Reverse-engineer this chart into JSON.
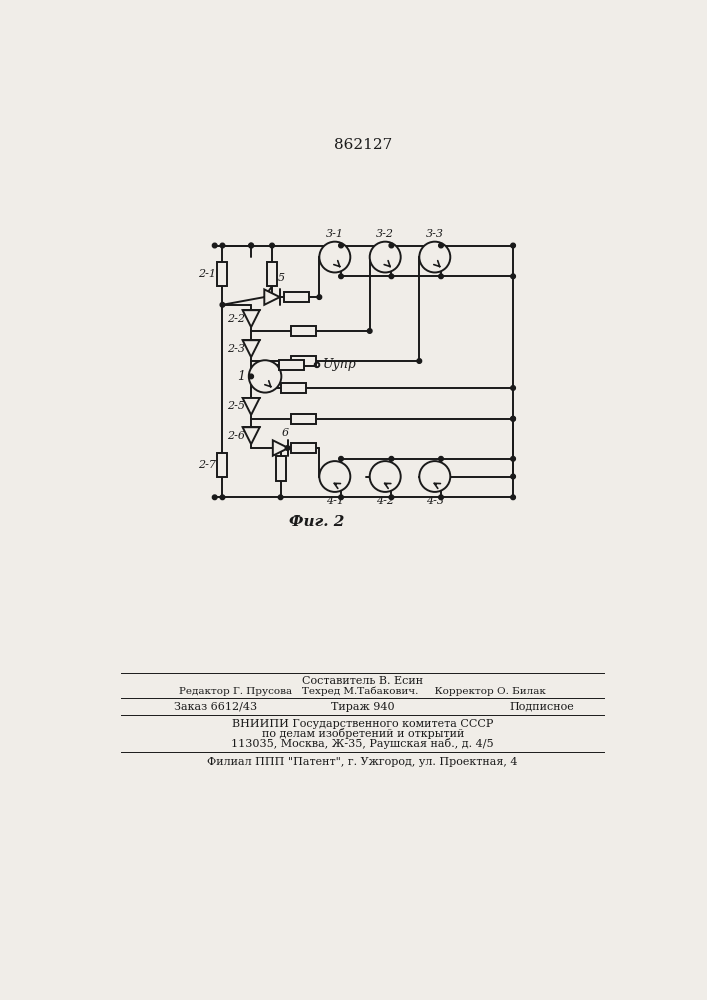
{
  "title": "862127",
  "fig_caption": "Фиг. 2",
  "background_color": "#f0ede8",
  "line_color": "#1a1a1a",
  "label_2_1": "2-1",
  "label_2_2": "2-2",
  "label_2_3": "2-3",
  "label_2_5": "2-5",
  "label_2_6": "2-6",
  "label_2_7": "2-7",
  "label_1": "1",
  "label_5": "5",
  "label_6": "6",
  "label_3_1": "3-1",
  "label_3_2": "3-2",
  "label_3_3": "3-3",
  "label_4_1": "4-1",
  "label_4_2": "4-2",
  "label_4_3": "4-3",
  "label_upr": "Uупр",
  "footer_line1": "Составитель В. Есин",
  "footer_line2": "Редактор Г. Прусова   Техред М.Табакович.     Корректор О. Билак",
  "footer_line3a": "Заказ 6612/43",
  "footer_line3b": "Тираж 940",
  "footer_line3c": "Подписное",
  "footer_line4": "ВНИИПИ Государственного комитета СССР",
  "footer_line5": "по делам изобретений и открытий",
  "footer_line6": "113035, Москва, Ж-35, Раушская наб., д. 4/5",
  "footer_line7": "Филиал ППП \"Патент\", г. Ужгород, ул. Проектная, 4"
}
